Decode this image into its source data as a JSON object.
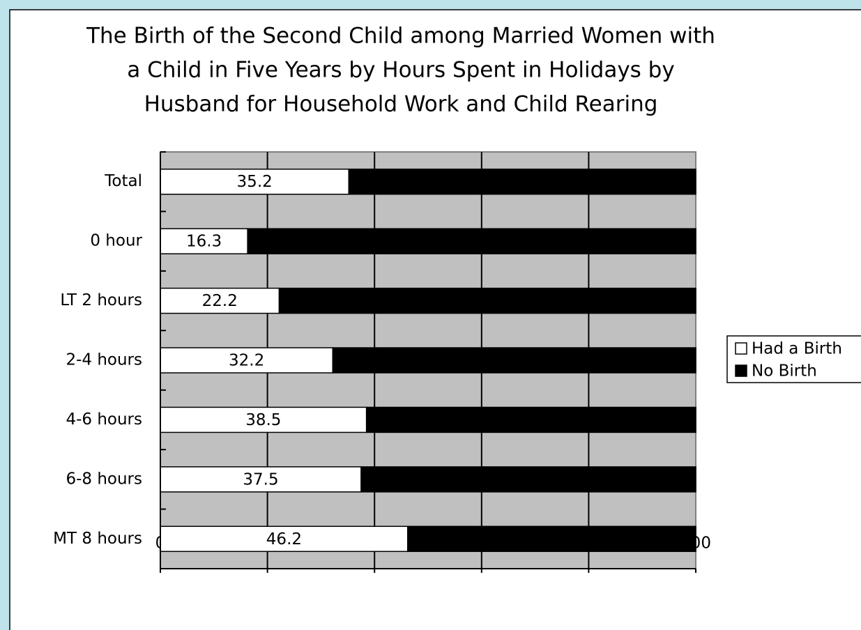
{
  "chart_data": {
    "type": "stacked-barh",
    "title": [
      "The Birth of the Second Child among Married Women with",
      "a Child in Five Years by Hours Spent in Holidays by",
      "Husband for Household Work and Child Rearing"
    ],
    "categories": [
      "Total",
      "0 hour",
      "LT 2 hours",
      "2-4 hours",
      "4-6 hours",
      "6-8 hours",
      "MT 8 hours"
    ],
    "series": [
      {
        "name": "Had a Birth",
        "color": "#ffffff",
        "values": [
          35.2,
          16.3,
          22.2,
          32.2,
          38.5,
          37.5,
          46.2
        ]
      },
      {
        "name": "No Birth",
        "color": "#000000",
        "values": [
          64.8,
          83.7,
          77.8,
          67.8,
          61.5,
          62.5,
          53.8
        ]
      }
    ],
    "xlim": [
      0,
      100
    ],
    "xticks": [
      0,
      20,
      40,
      60,
      80,
      100
    ],
    "grid": true,
    "legend": "right",
    "plot_background": "#c0c0c0",
    "data_labels_series": 0
  }
}
